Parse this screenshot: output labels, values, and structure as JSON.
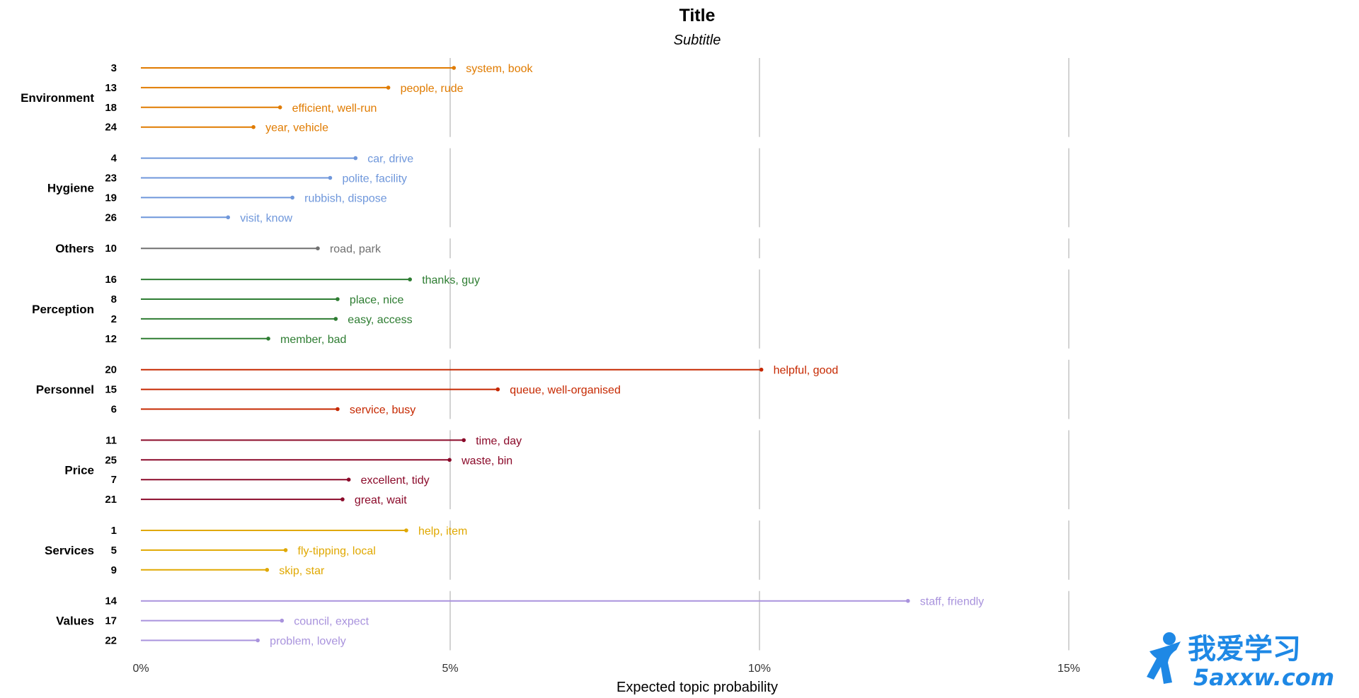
{
  "chart_data": {
    "type": "bar",
    "title": "Title",
    "subtitle": "Subtitle",
    "xlabel": "Expected topic probability",
    "xlim": [
      0,
      0.19
    ],
    "x_ticks": [
      {
        "value": 0,
        "label": "0%"
      },
      {
        "value": 0.05,
        "label": "5%"
      },
      {
        "value": 0.1,
        "label": "10%"
      },
      {
        "value": 0.15,
        "label": "15%"
      }
    ],
    "grid": "vertical major gridlines only",
    "groups": [
      {
        "name": "Environment",
        "color": "#E07B00",
        "topics": [
          {
            "id": "3",
            "value": 0.0506,
            "terms": "system, book"
          },
          {
            "id": "13",
            "value": 0.04,
            "terms": "people, rude"
          },
          {
            "id": "18",
            "value": 0.0225,
            "terms": "efficient, well-run"
          },
          {
            "id": "24",
            "value": 0.0182,
            "terms": "year, vehicle"
          }
        ]
      },
      {
        "name": "Hygiene",
        "color": "#6F97DB",
        "topics": [
          {
            "id": "4",
            "value": 0.0347,
            "terms": "car, drive"
          },
          {
            "id": "23",
            "value": 0.0306,
            "terms": "polite, facility"
          },
          {
            "id": "19",
            "value": 0.0245,
            "terms": "rubbish, dispose"
          },
          {
            "id": "26",
            "value": 0.0141,
            "terms": "visit, know"
          }
        ]
      },
      {
        "name": "Others",
        "color": "#707070",
        "topics": [
          {
            "id": "10",
            "value": 0.0286,
            "terms": "road, park"
          }
        ]
      },
      {
        "name": "Perception",
        "color": "#2E7D32",
        "topics": [
          {
            "id": "16",
            "value": 0.0435,
            "terms": "thanks, guy"
          },
          {
            "id": "8",
            "value": 0.0318,
            "terms": "place, nice"
          },
          {
            "id": "2",
            "value": 0.0315,
            "terms": "easy, access"
          },
          {
            "id": "12",
            "value": 0.0206,
            "terms": "member, bad"
          }
        ]
      },
      {
        "name": "Personnel",
        "color": "#C62800",
        "topics": [
          {
            "id": "20",
            "value": 0.1003,
            "terms": "helpful, good"
          },
          {
            "id": "15",
            "value": 0.0577,
            "terms": "queue, well-organised"
          },
          {
            "id": "6",
            "value": 0.0318,
            "terms": "service, busy"
          }
        ]
      },
      {
        "name": "Price",
        "color": "#8B0A2A",
        "topics": [
          {
            "id": "11",
            "value": 0.0522,
            "terms": "time, day"
          },
          {
            "id": "25",
            "value": 0.0499,
            "terms": "waste, bin"
          },
          {
            "id": "7",
            "value": 0.0336,
            "terms": "excellent, tidy"
          },
          {
            "id": "21",
            "value": 0.0326,
            "terms": "great, wait"
          }
        ]
      },
      {
        "name": "Services",
        "color": "#E0A800",
        "topics": [
          {
            "id": "1",
            "value": 0.0429,
            "terms": "help, item"
          },
          {
            "id": "5",
            "value": 0.0234,
            "terms": "fly-tipping, local"
          },
          {
            "id": "9",
            "value": 0.0204,
            "terms": "skip, star"
          }
        ]
      },
      {
        "name": "Values",
        "color": "#A993DD",
        "topics": [
          {
            "id": "14",
            "value": 0.124,
            "terms": "staff, friendly"
          },
          {
            "id": "17",
            "value": 0.0228,
            "terms": "council, expect"
          },
          {
            "id": "22",
            "value": 0.0189,
            "terms": "problem, lovely"
          }
        ]
      }
    ]
  },
  "watermark": {
    "line1": "我爱学习",
    "line2": "5axxw.com",
    "color": "#1E88E5"
  }
}
